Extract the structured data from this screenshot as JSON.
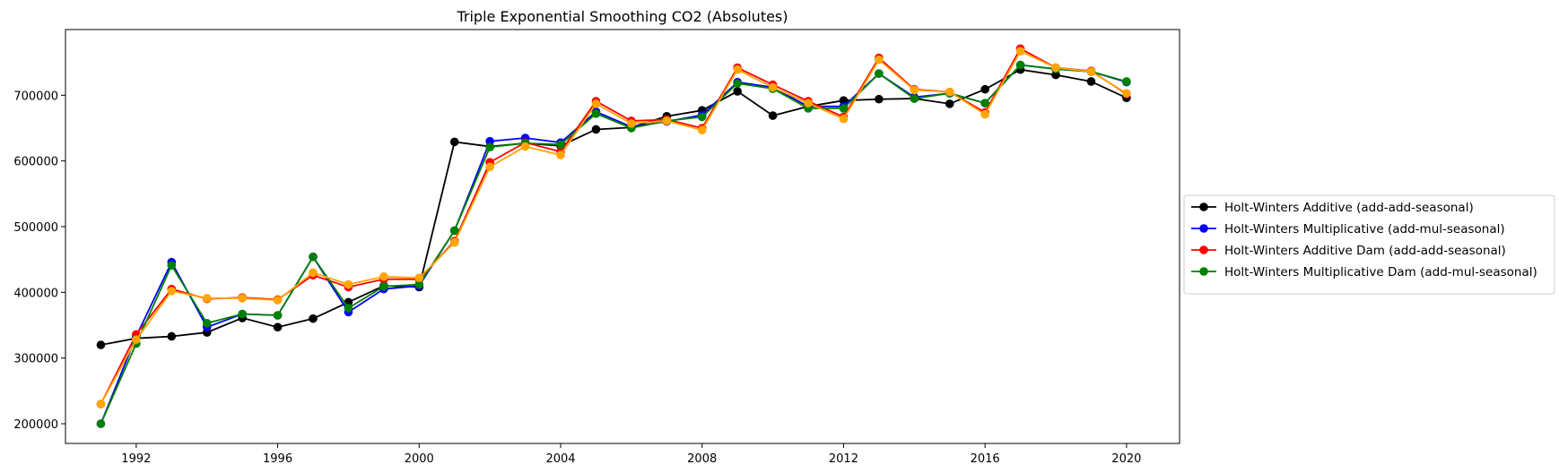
{
  "chart_data": {
    "type": "line",
    "title": "Triple Exponential Smoothing CO2 (Absolutes)",
    "xlabel": "",
    "ylabel": "",
    "x": [
      1991,
      1992,
      1993,
      1994,
      1995,
      1996,
      1997,
      1998,
      1999,
      2000,
      2001,
      2002,
      2003,
      2004,
      2005,
      2006,
      2007,
      2008,
      2009,
      2010,
      2011,
      2012,
      2013,
      2014,
      2015,
      2016,
      2017,
      2018,
      2019,
      2020
    ],
    "xlim": [
      1990.0,
      2021.5
    ],
    "ylim": [
      170000,
      800000
    ],
    "x_ticks": [
      1992,
      1996,
      2000,
      2004,
      2008,
      2012,
      2016,
      2020
    ],
    "y_ticks": [
      200000,
      300000,
      400000,
      500000,
      600000,
      700000
    ],
    "grid": false,
    "legend_position": "right-outside",
    "series": [
      {
        "name": "Holt-Winters Additive (add-add-seasonal)",
        "color": "#000000",
        "values": [
          320000,
          330000,
          333000,
          339000,
          361000,
          347000,
          360000,
          385000,
          410000,
          408000,
          629000,
          622000,
          627000,
          623000,
          648000,
          651000,
          668000,
          677000,
          706000,
          669000,
          683000,
          692000,
          694000,
          695000,
          687000,
          709000,
          739000,
          731000,
          721000,
          696000
        ]
      },
      {
        "name": "Holt-Winters Multiplicative (add-mul-seasonal)",
        "color": "#0000ff",
        "values": [
          200000,
          333000,
          446000,
          347000,
          367000,
          365000,
          454000,
          370000,
          405000,
          410000,
          494000,
          630000,
          635000,
          628000,
          675000,
          652000,
          660000,
          670000,
          720000,
          712000,
          683000,
          683000,
          733000,
          697000,
          703000,
          688000,
          746000,
          740000,
          736000,
          720000
        ]
      },
      {
        "name": "Holt-Winters Additive Dam (add-add-seasonal)",
        "color": "#ff0000",
        "values": [
          230000,
          336000,
          405000,
          390000,
          392000,
          389000,
          426000,
          408000,
          420000,
          420000,
          478000,
          598000,
          628000,
          614000,
          691000,
          661000,
          663000,
          650000,
          742000,
          716000,
          691000,
          667000,
          757000,
          709000,
          705000,
          674000,
          771000,
          742000,
          737000,
          702000
        ]
      },
      {
        "name": "Holt-Winters Multiplicative Dam (add-mul-seasonal)",
        "color": "#008000",
        "values": [
          200000,
          322000,
          441000,
          353000,
          367000,
          365000,
          454000,
          376000,
          409000,
          412000,
          494000,
          621000,
          627000,
          625000,
          672000,
          650000,
          661000,
          667000,
          718000,
          710000,
          680000,
          680000,
          733000,
          695000,
          703000,
          688000,
          746000,
          740000,
          736000,
          721000
        ]
      }
    ],
    "overlay_series": {
      "color": "#ffa500",
      "values": [
        230000,
        328000,
        402000,
        391000,
        391000,
        388000,
        430000,
        412000,
        424000,
        422000,
        476000,
        591000,
        622000,
        609000,
        687000,
        657000,
        661000,
        647000,
        739000,
        712000,
        688000,
        664000,
        754000,
        708000,
        705000,
        671000,
        767000,
        742000,
        736000,
        703000
      ]
    }
  }
}
